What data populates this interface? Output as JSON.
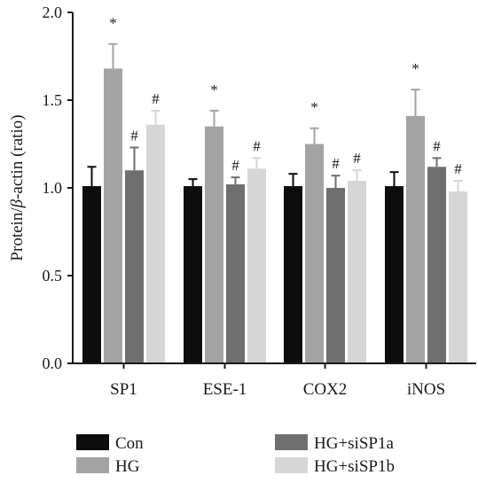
{
  "chart_data": {
    "type": "bar",
    "ylabel_prefix": "Protein/",
    "ylabel_italic": "β",
    "ylabel_suffix": "-actin (ratio)",
    "ylim": [
      0,
      2.0
    ],
    "yticks": [
      "0.0",
      "0.5",
      "1.0",
      "1.5",
      "2.0"
    ],
    "ytick_values": [
      0,
      0.5,
      1.0,
      1.5,
      2.0
    ],
    "categories": [
      "SP1",
      "ESE-1",
      "COX2",
      "iNOS"
    ],
    "series": [
      {
        "name": "Con",
        "color": "#0d0d0d",
        "values": [
          1.01,
          1.01,
          1.01,
          1.01
        ],
        "errors": [
          0.11,
          0.04,
          0.07,
          0.08
        ],
        "markers": [
          "",
          "",
          "",
          ""
        ]
      },
      {
        "name": "HG",
        "color": "#a3a3a3",
        "values": [
          1.68,
          1.35,
          1.25,
          1.41
        ],
        "errors": [
          0.14,
          0.09,
          0.09,
          0.15
        ],
        "markers": [
          "*",
          "*",
          "*",
          "*"
        ]
      },
      {
        "name": "HG+siSP1a",
        "color": "#6f6f6f",
        "values": [
          1.1,
          1.02,
          1.0,
          1.12
        ],
        "errors": [
          0.13,
          0.04,
          0.07,
          0.05
        ],
        "markers": [
          "#",
          "#",
          "#",
          "#"
        ]
      },
      {
        "name": "HG+siSP1b",
        "color": "#d6d6d6",
        "values": [
          1.36,
          1.11,
          1.04,
          0.98
        ],
        "errors": [
          0.08,
          0.06,
          0.06,
          0.06
        ],
        "markers": [
          "#",
          "#",
          "#",
          "#"
        ]
      }
    ],
    "legend": {
      "placement": "bottom",
      "columns": 2
    },
    "grid": false
  }
}
